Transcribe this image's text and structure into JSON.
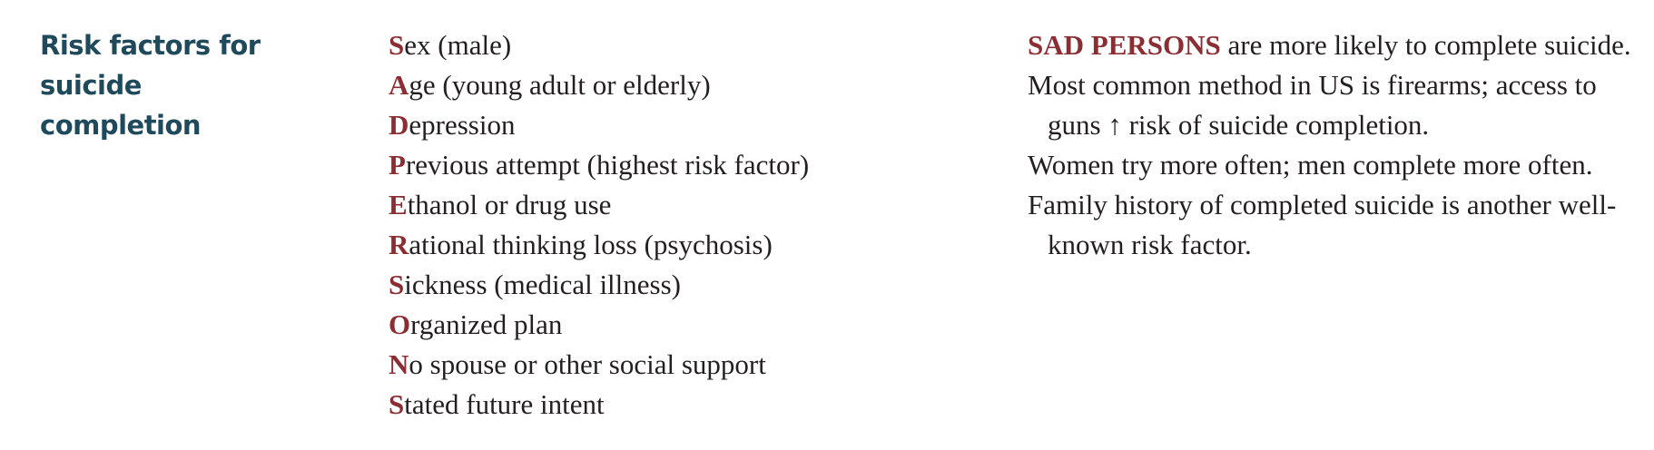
{
  "heading": {
    "line1": "Risk factors for suicide",
    "line2": "completion"
  },
  "mnemonic": [
    {
      "initial": "S",
      "rest": "ex (male)"
    },
    {
      "initial": "A",
      "rest": "ge (young adult or elderly)"
    },
    {
      "initial": "D",
      "rest": "epression"
    },
    {
      "initial": "P",
      "rest": "revious attempt (highest risk factor)"
    },
    {
      "initial": "E",
      "rest": "thanol or drug use"
    },
    {
      "initial": "R",
      "rest": "ational thinking loss (psychosis)"
    },
    {
      "initial": "S",
      "rest": "ickness (medical illness)"
    },
    {
      "initial": "O",
      "rest": "rganized plan"
    },
    {
      "initial": "N",
      "rest": "o spouse or other social support"
    },
    {
      "initial": "S",
      "rest": "tated future intent"
    }
  ],
  "notes": {
    "note1_highlight": "SAD PERSONS",
    "note1_rest": " are more likely to complete suicide.",
    "note2_before": "Most common method in US is firearms; access to guns ",
    "note2_arrow": "↑",
    "note2_after": " risk of suicide completion.",
    "note3": "Women try more often; men complete more often.",
    "note4": "Family history of completed suicide is another well-known risk factor."
  },
  "colors": {
    "heading": "#1f4a5c",
    "accent": "#8b2e33",
    "body_text": "#231f20"
  }
}
